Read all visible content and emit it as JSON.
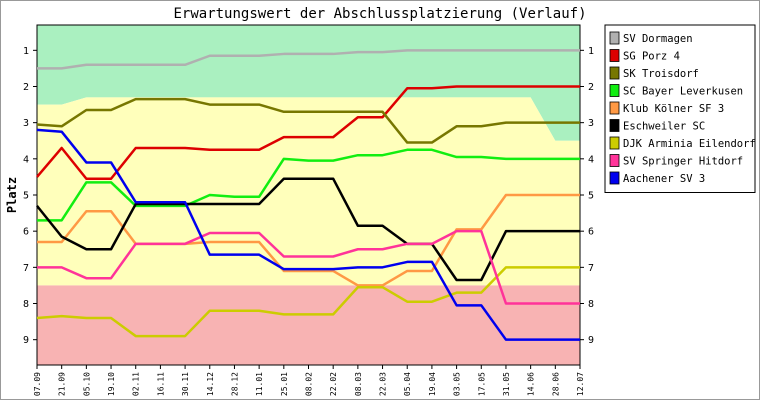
{
  "chart_data": {
    "type": "line",
    "title": "Erwartungswert der Abschlussplatzierung (Verlauf)",
    "ylabel": "Platz",
    "xlabel": "",
    "ylim": [
      0.3,
      9.7
    ],
    "y_ticks": [
      "1",
      "2",
      "3",
      "4",
      "5",
      "6",
      "7",
      "8",
      "9"
    ],
    "y_reversed": true,
    "grid": false,
    "legend_position": "right",
    "categories": [
      "07.09",
      "21.09",
      "05.10",
      "19.10",
      "02.11",
      "16.11",
      "30.11",
      "14.12",
      "28.12",
      "11.01",
      "25.01",
      "08.02",
      "22.02",
      "08.03",
      "22.03",
      "05.04",
      "19.04",
      "03.05",
      "17.05",
      "31.05",
      "14.06",
      "28.06",
      "12.07"
    ],
    "background_zones": {
      "green_color": "#aaf0c0",
      "yellow_color": "#ffffbb",
      "red_color": "#f8b3b3",
      "green_yellow_boundary": [
        2.5,
        2.5,
        2.3,
        2.3,
        2.3,
        2.3,
        2.3,
        2.3,
        2.3,
        2.3,
        2.3,
        2.3,
        2.3,
        2.3,
        2.3,
        2.3,
        2.3,
        2.3,
        2.3,
        2.3,
        2.3,
        3.5,
        3.5
      ],
      "red_top": 7.5
    },
    "series": [
      {
        "name": "SV Dormagen",
        "color": "#b0b0b0",
        "values": [
          1.5,
          1.5,
          1.4,
          1.4,
          1.4,
          1.4,
          1.4,
          1.15,
          1.15,
          1.15,
          1.1,
          1.1,
          1.1,
          1.05,
          1.05,
          1.0,
          1.0,
          1.0,
          1.0,
          1.0,
          1.0,
          1.0,
          1.0
        ]
      },
      {
        "name": "SG Porz 4",
        "color": "#dd0000",
        "values": [
          4.5,
          3.7,
          4.55,
          4.55,
          3.7,
          3.7,
          3.7,
          3.75,
          3.75,
          3.75,
          3.4,
          3.4,
          3.4,
          2.85,
          2.85,
          2.05,
          2.05,
          2.0,
          2.0,
          2.0,
          2.0,
          2.0,
          2.0
        ]
      },
      {
        "name": "SK Troisdorf",
        "color": "#777700",
        "values": [
          3.05,
          3.1,
          2.65,
          2.65,
          2.35,
          2.35,
          2.35,
          2.5,
          2.5,
          2.5,
          2.7,
          2.7,
          2.7,
          2.7,
          2.7,
          3.55,
          3.55,
          3.1,
          3.1,
          3.0,
          3.0,
          3.0,
          3.0
        ]
      },
      {
        "name": "SC Bayer Leverkusen",
        "color": "#11ee11",
        "values": [
          5.7,
          5.7,
          4.65,
          4.65,
          5.3,
          5.3,
          5.3,
          5.0,
          5.05,
          5.05,
          4.0,
          4.05,
          4.05,
          3.9,
          3.9,
          3.75,
          3.75,
          3.95,
          3.95,
          4.0,
          4.0,
          4.0,
          4.0
        ]
      },
      {
        "name": "Klub Kölner SF 3",
        "color": "#ff9944",
        "values": [
          6.3,
          6.3,
          5.45,
          5.45,
          6.35,
          6.35,
          6.35,
          6.3,
          6.3,
          6.3,
          7.1,
          7.1,
          7.1,
          7.5,
          7.5,
          7.1,
          7.1,
          5.95,
          5.95,
          5.0,
          5.0,
          5.0,
          5.0
        ]
      },
      {
        "name": "Eschweiler SC",
        "color": "#000000",
        "values": [
          5.3,
          6.15,
          6.5,
          6.5,
          5.25,
          5.25,
          5.25,
          5.25,
          5.25,
          5.25,
          4.55,
          4.55,
          4.55,
          5.85,
          5.85,
          6.35,
          6.35,
          7.35,
          7.35,
          6.0,
          6.0,
          6.0,
          6.0
        ]
      },
      {
        "name": "DJK Arminia Eilendorf",
        "color": "#cccc00",
        "values": [
          8.4,
          8.35,
          8.4,
          8.4,
          8.9,
          8.9,
          8.9,
          8.2,
          8.2,
          8.2,
          8.3,
          8.3,
          8.3,
          7.55,
          7.55,
          7.95,
          7.95,
          7.7,
          7.7,
          7.0,
          7.0,
          7.0,
          7.0
        ]
      },
      {
        "name": "SV Springer Hitdorf",
        "color": "#ff3399",
        "values": [
          7.0,
          7.0,
          7.3,
          7.3,
          6.35,
          6.35,
          6.35,
          6.05,
          6.05,
          6.05,
          6.7,
          6.7,
          6.7,
          6.5,
          6.5,
          6.35,
          6.35,
          6.0,
          6.0,
          8.0,
          8.0,
          8.0,
          8.0
        ]
      },
      {
        "name": "Aachener SV 3",
        "color": "#0000ee",
        "values": [
          3.2,
          3.25,
          4.1,
          4.1,
          5.2,
          5.2,
          5.2,
          6.65,
          6.65,
          6.65,
          7.05,
          7.05,
          7.05,
          7.0,
          7.0,
          6.85,
          6.85,
          8.05,
          8.05,
          9.0,
          9.0,
          9.0,
          9.0
        ]
      }
    ]
  }
}
